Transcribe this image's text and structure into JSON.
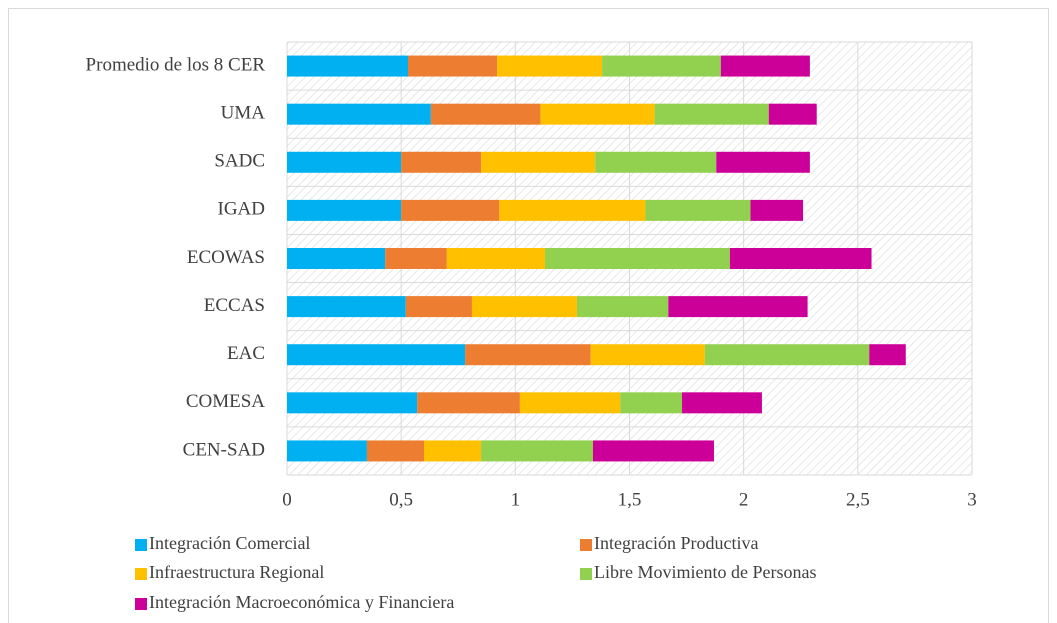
{
  "chart_data": {
    "type": "stacked-bar-horizontal",
    "categories": [
      "Promedio de los 8 CER",
      "UMA",
      "SADC",
      "IGAD",
      "ECOWAS",
      "ECCAS",
      "EAC",
      "COMESA",
      "CEN-SAD"
    ],
    "series": [
      {
        "name": "Integración Comercial",
        "color": "#00b0f0",
        "values": [
          0.53,
          0.63,
          0.5,
          0.5,
          0.43,
          0.52,
          0.78,
          0.57,
          0.35
        ]
      },
      {
        "name": "Integración Productiva",
        "color": "#ed7d31",
        "values": [
          0.39,
          0.48,
          0.35,
          0.43,
          0.27,
          0.29,
          0.55,
          0.45,
          0.25
        ]
      },
      {
        "name": "Infraestructura Regional",
        "color": "#ffc000",
        "values": [
          0.46,
          0.5,
          0.5,
          0.64,
          0.43,
          0.46,
          0.5,
          0.44,
          0.25
        ]
      },
      {
        "name": "Libre Movimiento de Personas",
        "color": "#92d050",
        "values": [
          0.52,
          0.5,
          0.53,
          0.46,
          0.81,
          0.4,
          0.72,
          0.27,
          0.49
        ]
      },
      {
        "name": "Integración Macroeconómica y Financiera",
        "color": "#cc0099",
        "values": [
          0.39,
          0.21,
          0.41,
          0.23,
          0.62,
          0.61,
          0.16,
          0.35,
          0.53
        ]
      }
    ],
    "xlim": [
      0,
      3
    ],
    "xticks": [
      0,
      {
        "value": 0.5,
        "label": "0,5"
      },
      1,
      {
        "value": 1.5,
        "label": "1,5"
      },
      2,
      {
        "value": 2.5,
        "label": "2,5"
      },
      3
    ],
    "grid": true
  }
}
